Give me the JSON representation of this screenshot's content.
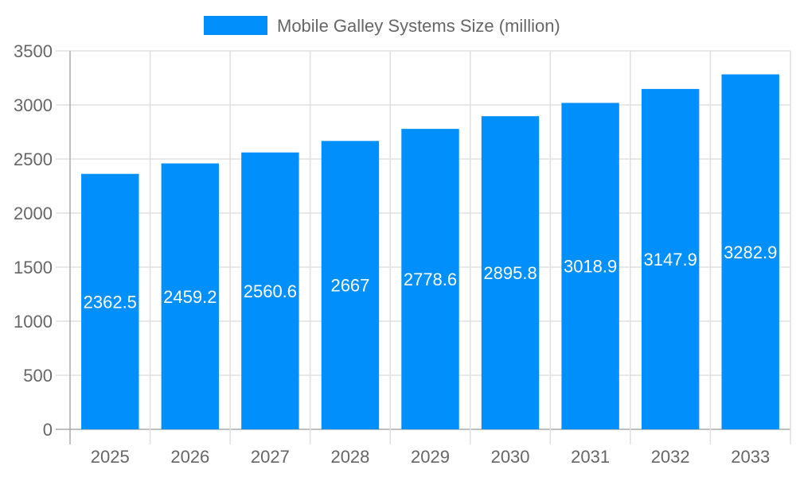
{
  "chart_data": {
    "type": "bar",
    "title": "",
    "xlabel": "",
    "ylabel": "",
    "categories": [
      "2025",
      "2026",
      "2027",
      "2028",
      "2029",
      "2030",
      "2031",
      "2032",
      "2033"
    ],
    "series": [
      {
        "name": "Mobile Galley Systems Size (million)",
        "values": [
          2362.5,
          2459.2,
          2560.6,
          2667,
          2778.6,
          2895.8,
          3018.9,
          3147.9,
          3282.9
        ],
        "labels": [
          "2362.5",
          "2459.2",
          "2560.6",
          "2667",
          "2778.6",
          "2895.8",
          "3018.9",
          "3147.9",
          "3282.9"
        ]
      }
    ],
    "ylim": [
      0,
      3500
    ],
    "yticks": [
      "0",
      "500",
      "1000",
      "1500",
      "2000",
      "2500",
      "3000",
      "3500"
    ],
    "grid": true,
    "legend_position": "top",
    "colors": {
      "bar": "#008ffb",
      "grid": "#e0e0e0",
      "axis": "#aaaaaa",
      "text": "#666666",
      "label": "#ffffff"
    }
  }
}
